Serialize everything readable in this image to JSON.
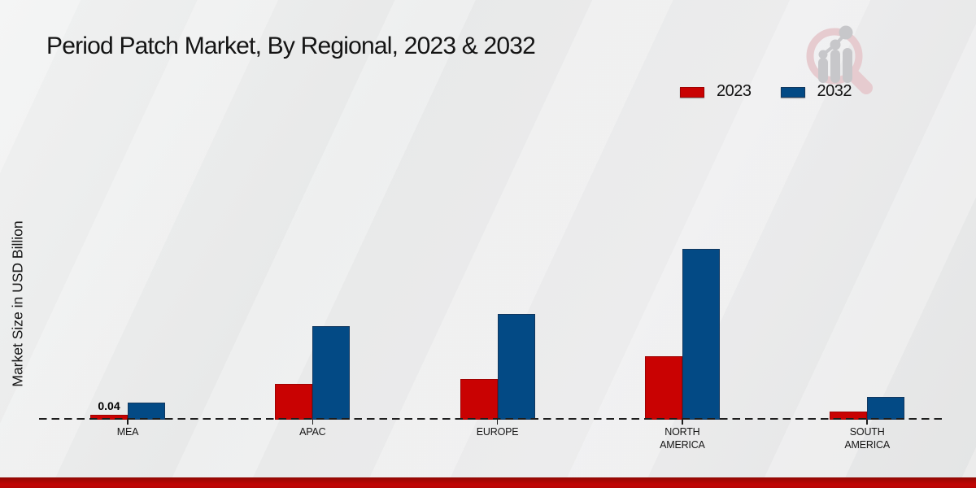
{
  "chart_data": {
    "type": "bar",
    "title": "Period Patch Market, By Regional, 2023 & 2032",
    "ylabel": "Market Size in USD Billion",
    "xlabel": "",
    "categories": [
      "MEA",
      "APAC",
      "EUROPE",
      "NORTH AMERICA",
      "SOUTH AMERICA"
    ],
    "series": [
      {
        "name": "2023",
        "color": "#c90202",
        "border_color": "#9e0202",
        "values": [
          0.04,
          0.27,
          0.31,
          0.48,
          0.06
        ]
      },
      {
        "name": "2032",
        "color": "#034a85",
        "border_color": "#12375e",
        "values": [
          0.13,
          0.71,
          0.8,
          1.29,
          0.17
        ]
      }
    ],
    "bar_labels": [
      {
        "category": "MEA",
        "series": "2023",
        "text": "0.04"
      }
    ],
    "ylim": [
      0,
      1.4
    ],
    "grid": false,
    "legend_position": "top-right",
    "baseline_style": "dashed",
    "units": "USD Billion"
  },
  "watermark": {
    "name": "market-research-future-logo",
    "ring_color": "#e6cbcf",
    "bars_color": "#c7c7ca"
  },
  "footer": {
    "accent_color": "#c20505"
  }
}
